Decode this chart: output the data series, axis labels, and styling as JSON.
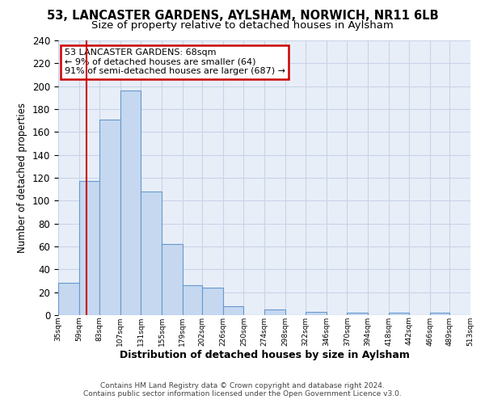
{
  "title": "53, LANCASTER GARDENS, AYLSHAM, NORWICH, NR11 6LB",
  "subtitle": "Size of property relative to detached houses in Aylsham",
  "xlabel": "Distribution of detached houses by size in Aylsham",
  "ylabel": "Number of detached properties",
  "bin_edges": [
    35,
    59,
    83,
    107,
    131,
    155,
    179,
    202,
    226,
    250,
    274,
    298,
    322,
    346,
    370,
    394,
    418,
    442,
    466,
    489,
    513
  ],
  "bar_heights": [
    28,
    117,
    171,
    196,
    108,
    62,
    26,
    24,
    8,
    0,
    5,
    0,
    3,
    0,
    2,
    0,
    2,
    0,
    2,
    0
  ],
  "bar_color": "#c5d8f0",
  "bar_edge_color": "#6699cc",
  "property_line_x": 68,
  "property_line_color": "#cc0000",
  "annotation_text": "53 LANCASTER GARDENS: 68sqm\n← 9% of detached houses are smaller (64)\n91% of semi-detached houses are larger (687) →",
  "annotation_box_color": "#ffffff",
  "annotation_box_edge_color": "#cc0000",
  "ylim": [
    0,
    240
  ],
  "yticks": [
    0,
    20,
    40,
    60,
    80,
    100,
    120,
    140,
    160,
    180,
    200,
    220,
    240
  ],
  "xtick_labels": [
    "35sqm",
    "59sqm",
    "83sqm",
    "107sqm",
    "131sqm",
    "155sqm",
    "179sqm",
    "202sqm",
    "226sqm",
    "250sqm",
    "274sqm",
    "298sqm",
    "322sqm",
    "346sqm",
    "370sqm",
    "394sqm",
    "418sqm",
    "442sqm",
    "466sqm",
    "489sqm",
    "513sqm"
  ],
  "footer_line1": "Contains HM Land Registry data © Crown copyright and database right 2024.",
  "footer_line2": "Contains public sector information licensed under the Open Government Licence v3.0.",
  "fig_background": "#ffffff",
  "axes_background": "#e8eef8",
  "grid_color": "#c8d4e8",
  "title_fontsize": 10.5,
  "subtitle_fontsize": 9.5
}
